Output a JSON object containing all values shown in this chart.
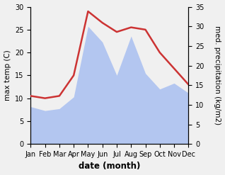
{
  "months": [
    "Jan",
    "Feb",
    "Mar",
    "Apr",
    "May",
    "Jun",
    "Jul",
    "Aug",
    "Sep",
    "Oct",
    "Nov",
    "Dec"
  ],
  "x": [
    1,
    2,
    3,
    4,
    5,
    6,
    7,
    8,
    9,
    10,
    11,
    12
  ],
  "temperature": [
    10.5,
    10.0,
    10.5,
    15.0,
    29.0,
    26.5,
    24.5,
    25.5,
    25.0,
    20.0,
    16.5,
    13.0
  ],
  "precipitation": [
    9.5,
    8.5,
    9.0,
    12.0,
    30.0,
    26.0,
    17.5,
    27.5,
    18.0,
    14.0,
    15.5,
    13.0
  ],
  "temp_color": "#cc3333",
  "precip_color": "#b3c6f0",
  "ylabel_left": "max temp (C)",
  "ylabel_right": "med. precipitation (kg/m2)",
  "xlabel": "date (month)",
  "ylim_left": [
    0,
    30
  ],
  "ylim_right": [
    0,
    35
  ],
  "yticks_left": [
    0,
    5,
    10,
    15,
    20,
    25,
    30
  ],
  "yticks_right": [
    0,
    5,
    10,
    15,
    20,
    25,
    30,
    35
  ],
  "bg_color": "#f0f0f0",
  "label_fontsize": 7.5,
  "tick_fontsize": 7.0,
  "xlabel_fontsize": 8.5
}
